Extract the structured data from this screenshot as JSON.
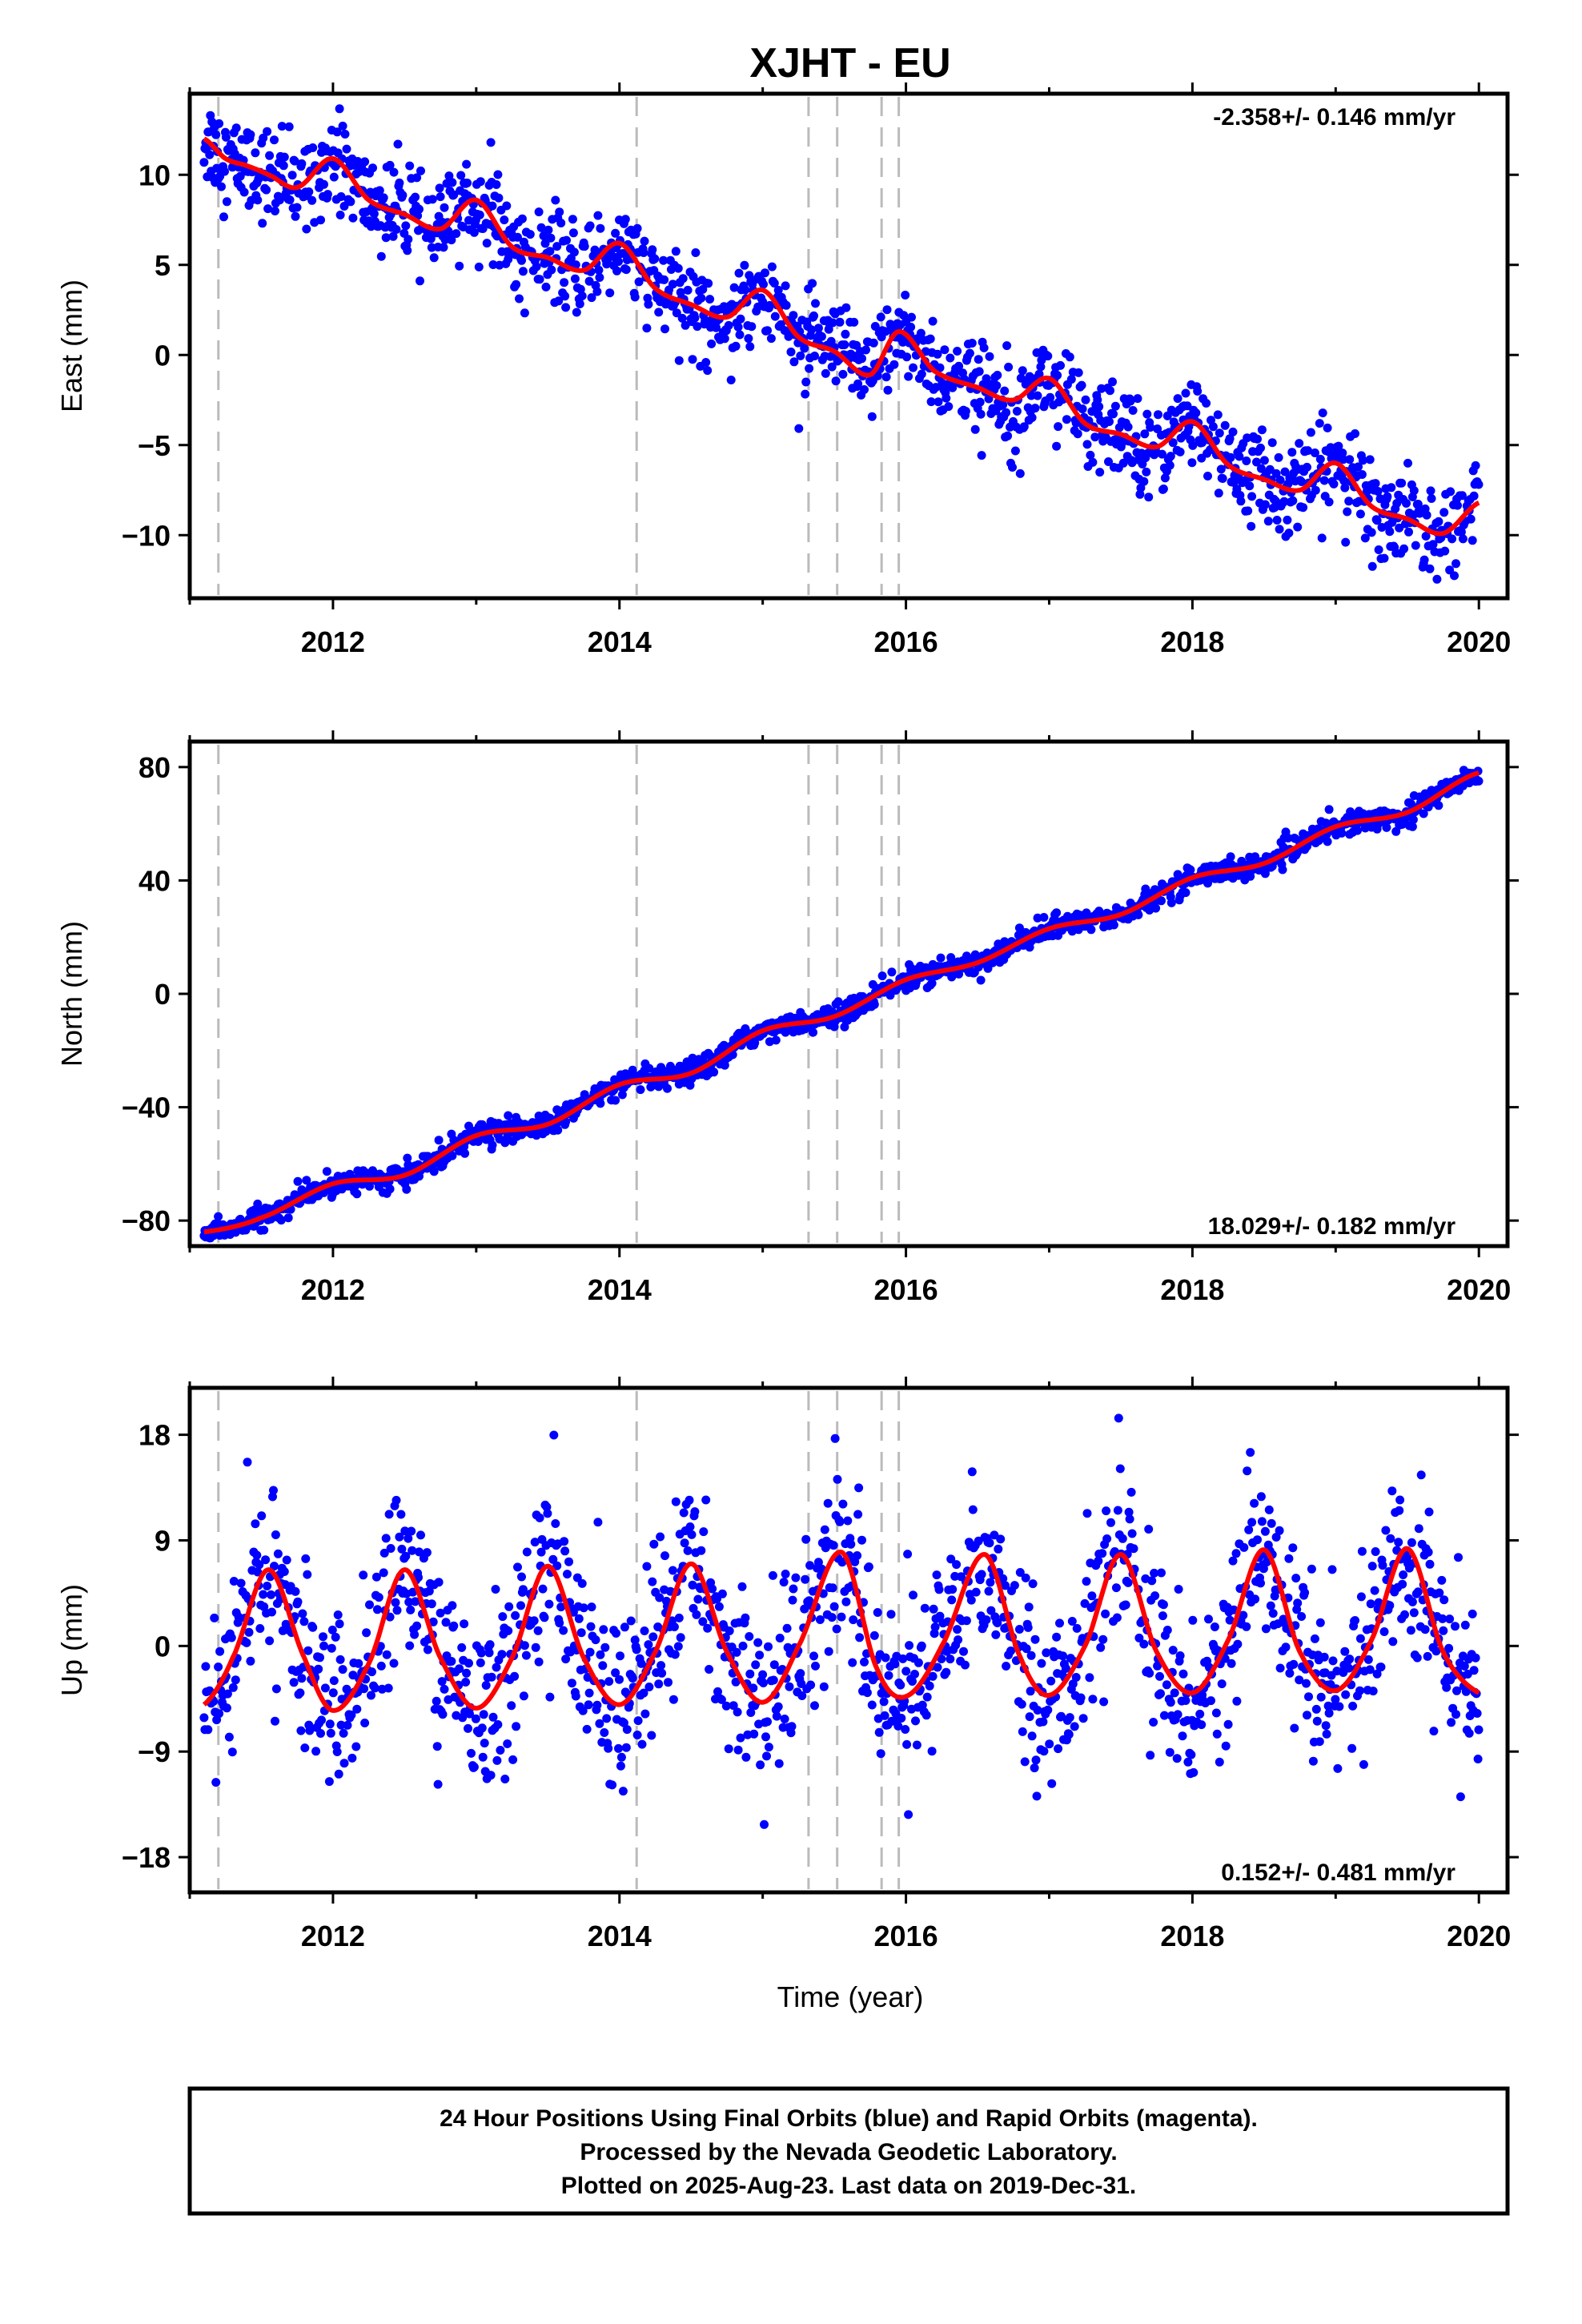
{
  "chart_data": {
    "type": "scatter",
    "title": "XJHT - EU",
    "xlabel": "Time (year)",
    "xlim": [
      2011.0,
      2020.2
    ],
    "x_ticks": [
      2012,
      2014,
      2016,
      2018,
      2020
    ],
    "x_tick_labels": [
      "2012",
      "2014",
      "2016",
      "2018",
      "2020"
    ],
    "equipment_changes": [
      2011.2,
      2014.12,
      2015.32,
      2015.52,
      2015.83,
      2015.95
    ],
    "colors": {
      "observations": "#0000ff",
      "model": "#ff0000",
      "equipment_lines": "#bbbbbb"
    },
    "panels": [
      {
        "component": "east",
        "ylabel": "East (mm)",
        "ylim": [
          -13.5,
          14.5
        ],
        "y_ticks": [
          -10,
          -5,
          0,
          5,
          10
        ],
        "y_tick_labels": [
          "-10",
          "-5",
          "0",
          "5",
          "10"
        ],
        "rate_label": "-2.358+/- 0.146 mm/yr",
        "rate_position": "top-right",
        "trend_start": 2011.1,
        "trend_end": 2020.0,
        "series": [
          {
            "points": [
              [
                2011.1,
                12.0
              ],
              [
                2011.25,
                10.9
              ],
              [
                2011.4,
                10.5
              ],
              [
                2011.55,
                10.0
              ],
              [
                2011.75,
                9.3
              ],
              [
                2012.0,
                10.9
              ],
              [
                2012.25,
                8.6
              ],
              [
                2012.5,
                7.8
              ],
              [
                2012.75,
                7.0
              ],
              [
                2013.0,
                8.6
              ],
              [
                2013.25,
                6.0
              ],
              [
                2013.5,
                5.4
              ],
              [
                2013.75,
                4.7
              ],
              [
                2014.0,
                6.2
              ],
              [
                2014.25,
                3.7
              ],
              [
                2014.5,
                2.8
              ],
              [
                2014.75,
                2.1
              ],
              [
                2015.0,
                3.6
              ],
              [
                2015.25,
                1.0
              ],
              [
                2015.5,
                0.2
              ],
              [
                2015.75,
                -1.1
              ],
              [
                2015.95,
                1.3
              ],
              [
                2016.2,
                -0.9
              ],
              [
                2016.5,
                -1.8
              ],
              [
                2016.75,
                -2.5
              ],
              [
                2017.0,
                -1.3
              ],
              [
                2017.25,
                -3.8
              ],
              [
                2017.5,
                -4.4
              ],
              [
                2017.75,
                -5.1
              ],
              [
                2018.0,
                -3.7
              ],
              [
                2018.25,
                -6.1
              ],
              [
                2018.5,
                -6.9
              ],
              [
                2018.75,
                -7.5
              ],
              [
                2019.0,
                -6.0
              ],
              [
                2019.25,
                -8.4
              ],
              [
                2019.5,
                -9.1
              ],
              [
                2019.75,
                -9.9
              ],
              [
                2020.0,
                -8.2
              ]
            ]
          }
        ]
      },
      {
        "component": "north",
        "ylabel": "North (mm)",
        "ylim": [
          -89,
          89
        ],
        "y_ticks": [
          -80,
          -40,
          0,
          40,
          80
        ],
        "y_tick_labels": [
          "-80",
          "-40",
          "0",
          "40",
          "80"
        ],
        "rate_label": "18.029+/- 0.182 mm/yr",
        "rate_position": "bottom-right",
        "trend_start": 2011.1,
        "trend_end": 2020.0,
        "series": [
          {
            "points": [
              [
                2011.1,
                -84.0
              ],
              [
                2011.5,
                -79.0
              ],
              [
                2012.0,
                -67.0
              ],
              [
                2012.5,
                -64.0
              ],
              [
                2013.0,
                -50.0
              ],
              [
                2013.5,
                -46.0
              ],
              [
                2014.0,
                -32.0
              ],
              [
                2014.5,
                -28.0
              ],
              [
                2015.0,
                -13.0
              ],
              [
                2015.5,
                -8.0
              ],
              [
                2016.0,
                5.0
              ],
              [
                2016.5,
                11.0
              ],
              [
                2017.0,
                23.0
              ],
              [
                2017.5,
                28.0
              ],
              [
                2018.0,
                41.0
              ],
              [
                2018.5,
                46.0
              ],
              [
                2019.0,
                59.0
              ],
              [
                2019.5,
                64.0
              ],
              [
                2020.0,
                78.0
              ]
            ]
          }
        ]
      },
      {
        "component": "up",
        "ylabel": "Up (mm)",
        "ylim": [
          -21,
          22
        ],
        "y_ticks": [
          -18,
          -9,
          0,
          9,
          18
        ],
        "y_tick_labels": [
          "-18",
          "-9",
          "0",
          "9",
          "18"
        ],
        "rate_label": "0.152+/- 0.481 mm/yr",
        "rate_position": "bottom-right",
        "trend_start": 2011.1,
        "trend_end": 2020.0,
        "series": [
          {
            "points": [
              [
                2011.1,
                -5.0
              ],
              [
                2011.3,
                -1.0
              ],
              [
                2011.55,
                6.5
              ],
              [
                2011.8,
                -1.0
              ],
              [
                2012.0,
                -5.5
              ],
              [
                2012.25,
                -1.5
              ],
              [
                2012.5,
                6.5
              ],
              [
                2012.75,
                -1.0
              ],
              [
                2013.0,
                -5.3
              ],
              [
                2013.25,
                -1.0
              ],
              [
                2013.5,
                6.8
              ],
              [
                2013.75,
                -1.0
              ],
              [
                2014.0,
                -5.0
              ],
              [
                2014.25,
                -0.5
              ],
              [
                2014.5,
                7.0
              ],
              [
                2014.75,
                -0.5
              ],
              [
                2015.0,
                -4.8
              ],
              [
                2015.25,
                0.0
              ],
              [
                2015.55,
                8.0
              ],
              [
                2015.8,
                -2.0
              ],
              [
                2016.0,
                -4.3
              ],
              [
                2016.25,
                0.0
              ],
              [
                2016.55,
                7.8
              ],
              [
                2016.8,
                -1.0
              ],
              [
                2017.0,
                -4.2
              ],
              [
                2017.25,
                0.0
              ],
              [
                2017.5,
                7.8
              ],
              [
                2017.75,
                -0.5
              ],
              [
                2018.0,
                -4.0
              ],
              [
                2018.25,
                0.5
              ],
              [
                2018.5,
                8.2
              ],
              [
                2018.75,
                -0.5
              ],
              [
                2019.0,
                -3.8
              ],
              [
                2019.25,
                0.5
              ],
              [
                2019.5,
                8.3
              ],
              [
                2019.75,
                -0.5
              ],
              [
                2020.0,
                -4.0
              ]
            ]
          }
        ]
      }
    ]
  },
  "footer": {
    "line1": "24 Hour Positions Using Final Orbits (blue) and Rapid Orbits (magenta).",
    "line2": "Processed by the Nevada Geodetic Laboratory.",
    "line3": "Plotted on 2025-Aug-23. Last data on 2019-Dec-31."
  }
}
